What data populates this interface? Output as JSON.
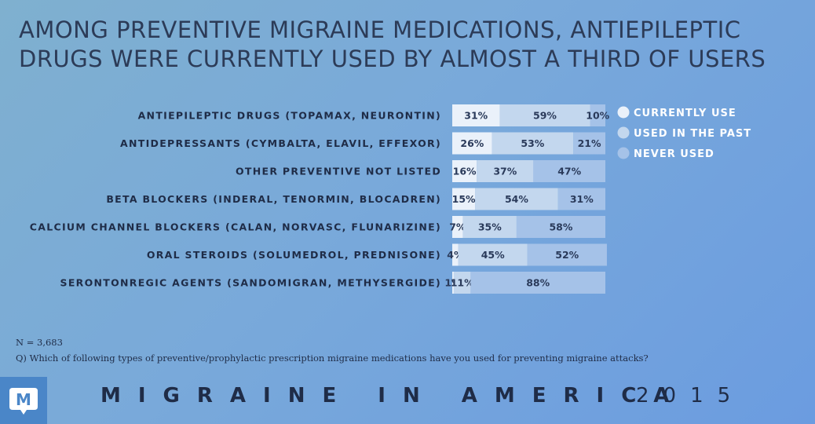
{
  "title": {
    "line1": "AMONG PREVENTIVE MIGRAINE MEDICATIONS, ANTIEPILEPTIC",
    "line2": "DRUGS WERE CURRENTLY USED BY ALMOST A THIRD OF USERS"
  },
  "chart_data": {
    "type": "bar",
    "stacked": true,
    "orientation": "horizontal",
    "categories": [
      "ANTIEPILEPTIC DRUGS (TOPAMAX, NEURONTIN)",
      "ANTIDEPRESSANTS (CYMBALTA, ELAVIL, EFFEXOR)",
      "OTHER PREVENTIVE NOT LISTED",
      "BETA BLOCKERS (INDERAL, TENORMIN, BLOCADREN)",
      "CALCIUM CHANNEL BLOCKERS (CALAN, NORVASC, FLUNARIZINE)",
      "ORAL STEROIDS (SOLUMEDROL, PREDNISONE)",
      "SERONTONREGIC AGENTS (SANDOMIGRAN, METHYSERGIDE)"
    ],
    "series": [
      {
        "name": "CURRENTLY USE",
        "values": [
          31,
          26,
          16,
          15,
          7,
          4,
          1
        ],
        "color": "#eaf1fa"
      },
      {
        "name": "USED IN THE PAST",
        "values": [
          59,
          53,
          37,
          54,
          35,
          45,
          11
        ],
        "color": "#c3d7ee"
      },
      {
        "name": "NEVER USED",
        "values": [
          10,
          21,
          47,
          31,
          58,
          52,
          88
        ],
        "color": "#a5c2e8"
      }
    ],
    "value_labels": [
      [
        "31%",
        "59%",
        "10%"
      ],
      [
        "26%",
        "53%",
        "21%"
      ],
      [
        "16%",
        "37%",
        "47%"
      ],
      [
        "15%",
        "54%",
        "31%"
      ],
      [
        "7%",
        "35%",
        "58%"
      ],
      [
        "4%",
        "45%",
        "52%"
      ],
      [
        "1%",
        "11%",
        "88%"
      ]
    ],
    "xlim": [
      0,
      100
    ],
    "legend_position": "right"
  },
  "footer": {
    "n_note": "N = 3,683",
    "question": "Q) Which of following types of preventive/prophylactic prescription migraine medications have you used for preventing migraine attacks?",
    "brand": "MIGRAINE IN AMERICA",
    "year": "2015",
    "logo_letter": "M"
  }
}
